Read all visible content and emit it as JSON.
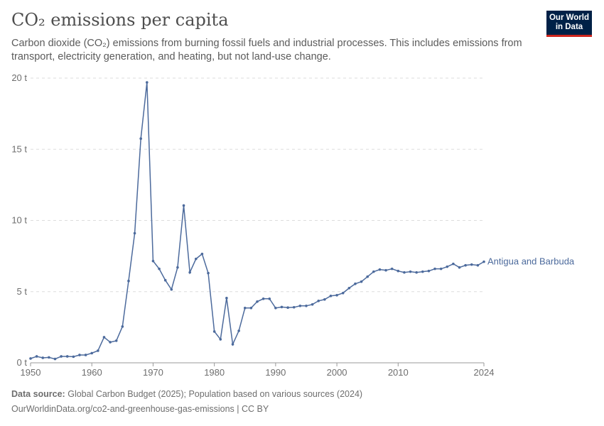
{
  "header": {
    "title": "CO₂ emissions per capita",
    "subtitle": "Carbon dioxide (CO₂) emissions from burning fossil fuels and industrial processes. This includes emissions from transport, electricity generation, and heating, but not land-use change.",
    "logo": "Our World in Data"
  },
  "footer": {
    "source_label": "Data source:",
    "source": "Global Carbon Budget (2025); Population based on various sources (2024)",
    "url": "OurWorldinData.org/co2-and-greenhouse-gas-emissions | CC BY"
  },
  "colors": {
    "series": "#4c6a9c",
    "grid": "#dddddd"
  },
  "chart_data": {
    "type": "line",
    "title": "CO₂ emissions per capita",
    "xlim": [
      1950,
      2024
    ],
    "ylim": [
      0,
      20
    ],
    "x_ticks": [
      "1950",
      "1960",
      "1970",
      "1980",
      "1990",
      "2000",
      "2010",
      "2024"
    ],
    "y_ticks": [
      "0 t",
      "5 t",
      "10 t",
      "15 t",
      "20 t"
    ],
    "grid": "horizontal dashed",
    "series": [
      {
        "name": "Antigua and Barbuda",
        "x": [
          1950,
          1951,
          1952,
          1953,
          1954,
          1955,
          1956,
          1957,
          1958,
          1959,
          1960,
          1961,
          1962,
          1963,
          1964,
          1965,
          1966,
          1967,
          1968,
          1969,
          1970,
          1971,
          1972,
          1973,
          1974,
          1975,
          1976,
          1977,
          1978,
          1979,
          1980,
          1981,
          1982,
          1983,
          1984,
          1985,
          1986,
          1987,
          1988,
          1989,
          1990,
          1991,
          1992,
          1993,
          1994,
          1995,
          1996,
          1997,
          1998,
          1999,
          2000,
          2001,
          2002,
          2003,
          2004,
          2005,
          2006,
          2007,
          2008,
          2009,
          2010,
          2011,
          2012,
          2013,
          2014,
          2015,
          2016,
          2017,
          2018,
          2019,
          2020,
          2021,
          2022,
          2023,
          2024
        ],
        "values": [
          0.3,
          0.45,
          0.35,
          0.38,
          0.27,
          0.45,
          0.45,
          0.43,
          0.55,
          0.55,
          0.68,
          0.85,
          1.8,
          1.45,
          1.55,
          2.55,
          5.75,
          9.1,
          15.75,
          19.7,
          7.15,
          6.6,
          5.8,
          5.15,
          6.7,
          11.05,
          6.35,
          7.3,
          7.65,
          6.3,
          2.2,
          1.65,
          4.55,
          1.3,
          2.25,
          3.85,
          3.85,
          4.3,
          4.5,
          4.5,
          3.85,
          3.92,
          3.88,
          3.9,
          4.0,
          4.0,
          4.1,
          4.35,
          4.45,
          4.7,
          4.75,
          4.9,
          5.25,
          5.55,
          5.7,
          6.05,
          6.4,
          6.55,
          6.5,
          6.6,
          6.45,
          6.35,
          6.4,
          6.35,
          6.4,
          6.45,
          6.6,
          6.6,
          6.75,
          6.95,
          6.7,
          6.85,
          6.9,
          6.85,
          7.1
        ]
      }
    ]
  }
}
